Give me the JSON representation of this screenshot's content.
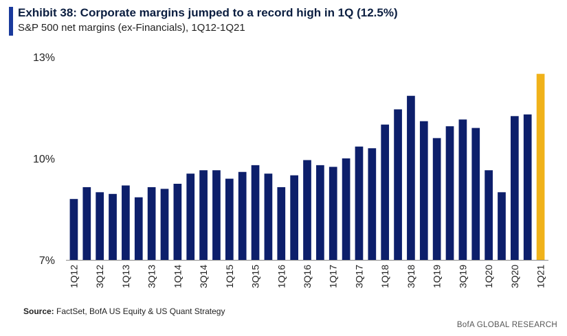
{
  "header": {
    "title": "Exhibit 38: Corporate margins jumped to a record high in 1Q (12.5%)",
    "subtitle": "S&P 500 net margins (ex-Financials), 1Q12-1Q21",
    "accent_color": "#1a3a9c"
  },
  "footer": {
    "source_label": "Source:",
    "source_text": " FactSet, BofA US Equity & US Quant Strategy",
    "brand": "BofA GLOBAL RESEARCH"
  },
  "chart_data": {
    "type": "bar",
    "title": "Exhibit 38: Corporate margins jumped to a record high in 1Q (12.5%)",
    "subtitle": "S&P 500 net margins (ex-Financials), 1Q12-1Q21",
    "xlabel": "",
    "ylabel": "",
    "ylim": [
      7,
      13
    ],
    "yticks": [
      7,
      10,
      13
    ],
    "ytick_labels": [
      "7%",
      "10%",
      "13%"
    ],
    "xtick_labels": [
      "1Q12",
      "3Q12",
      "1Q13",
      "3Q13",
      "1Q14",
      "3Q14",
      "1Q15",
      "3Q15",
      "1Q16",
      "3Q16",
      "1Q17",
      "3Q17",
      "1Q18",
      "3Q18",
      "1Q19",
      "3Q19",
      "1Q20",
      "3Q20",
      "1Q21"
    ],
    "categories": [
      "1Q12",
      "2Q12",
      "3Q12",
      "4Q12",
      "1Q13",
      "2Q13",
      "3Q13",
      "4Q13",
      "1Q14",
      "2Q14",
      "3Q14",
      "4Q14",
      "1Q15",
      "2Q15",
      "3Q15",
      "4Q15",
      "1Q16",
      "2Q16",
      "3Q16",
      "4Q16",
      "1Q17",
      "2Q17",
      "3Q17",
      "4Q17",
      "1Q18",
      "2Q18",
      "3Q18",
      "4Q18",
      "1Q19",
      "2Q19",
      "3Q19",
      "4Q19",
      "1Q20",
      "2Q20",
      "3Q20",
      "4Q20",
      "1Q21"
    ],
    "values": [
      8.8,
      9.15,
      9.0,
      8.95,
      9.2,
      8.85,
      9.15,
      9.1,
      9.25,
      9.55,
      9.65,
      9.65,
      9.4,
      9.6,
      9.8,
      9.55,
      9.15,
      9.5,
      9.95,
      9.8,
      9.75,
      10.0,
      10.35,
      10.3,
      11.0,
      11.45,
      11.85,
      11.1,
      10.6,
      10.95,
      11.15,
      10.9,
      9.65,
      9.0,
      11.25,
      11.3,
      12.5
    ],
    "colors": {
      "default": "#0d1f6b",
      "highlight": "#f0b21a"
    },
    "highlight_index": 36,
    "grid": false,
    "legend": "none"
  }
}
